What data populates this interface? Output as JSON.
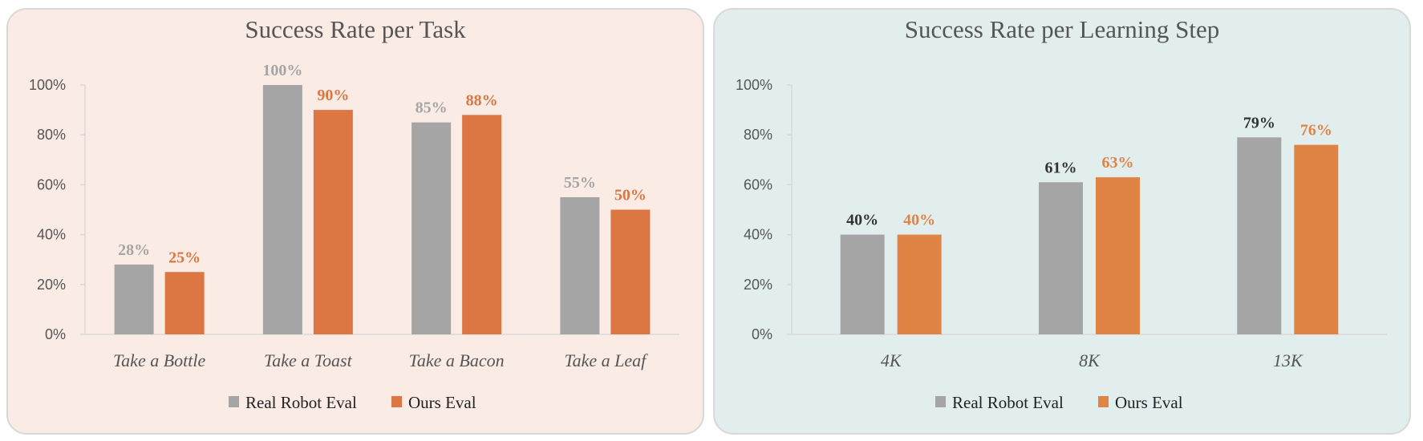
{
  "chart_data": [
    {
      "type": "bar",
      "title": "Success Rate per Task",
      "categories": [
        "Take a Bottle",
        "Take a Toast",
        "Take a Bacon",
        "Take a Leaf"
      ],
      "series": [
        {
          "name": "Real Robot Eval",
          "values": [
            28,
            100,
            85,
            55
          ],
          "labels": [
            "28%",
            "100%",
            "85%",
            "55%"
          ],
          "color": "#a5a5a5",
          "label_color": "#a5a5a5"
        },
        {
          "name": "Ours Eval",
          "values": [
            25,
            90,
            88,
            50
          ],
          "labels": [
            "25%",
            "90%",
            "88%",
            "50%"
          ],
          "color": "#dc7743",
          "label_color": "#dc7743"
        }
      ],
      "yticks": [
        "0%",
        "20%",
        "40%",
        "60%",
        "80%",
        "100%"
      ],
      "ylim": [
        0,
        100
      ],
      "grid": false,
      "legend": "bottom",
      "background": "#faece5"
    },
    {
      "type": "bar",
      "title": "Success Rate per Learning Step",
      "categories": [
        "4K",
        "8K",
        "13K"
      ],
      "series": [
        {
          "name": "Real Robot Eval",
          "values": [
            40,
            61,
            79
          ],
          "labels": [
            "40%",
            "61%",
            "79%"
          ],
          "color": "#a5a5a5",
          "label_color": "#333333"
        },
        {
          "name": "Ours Eval",
          "values": [
            40,
            63,
            76
          ],
          "labels": [
            "40%",
            "63%",
            "76%"
          ],
          "color": "#e08446",
          "label_color": "#e08446"
        }
      ],
      "yticks": [
        "0%",
        "20%",
        "40%",
        "60%",
        "80%",
        "100%"
      ],
      "ylim": [
        0,
        100
      ],
      "grid": false,
      "legend": "bottom",
      "background": "#e2eeee"
    }
  ]
}
